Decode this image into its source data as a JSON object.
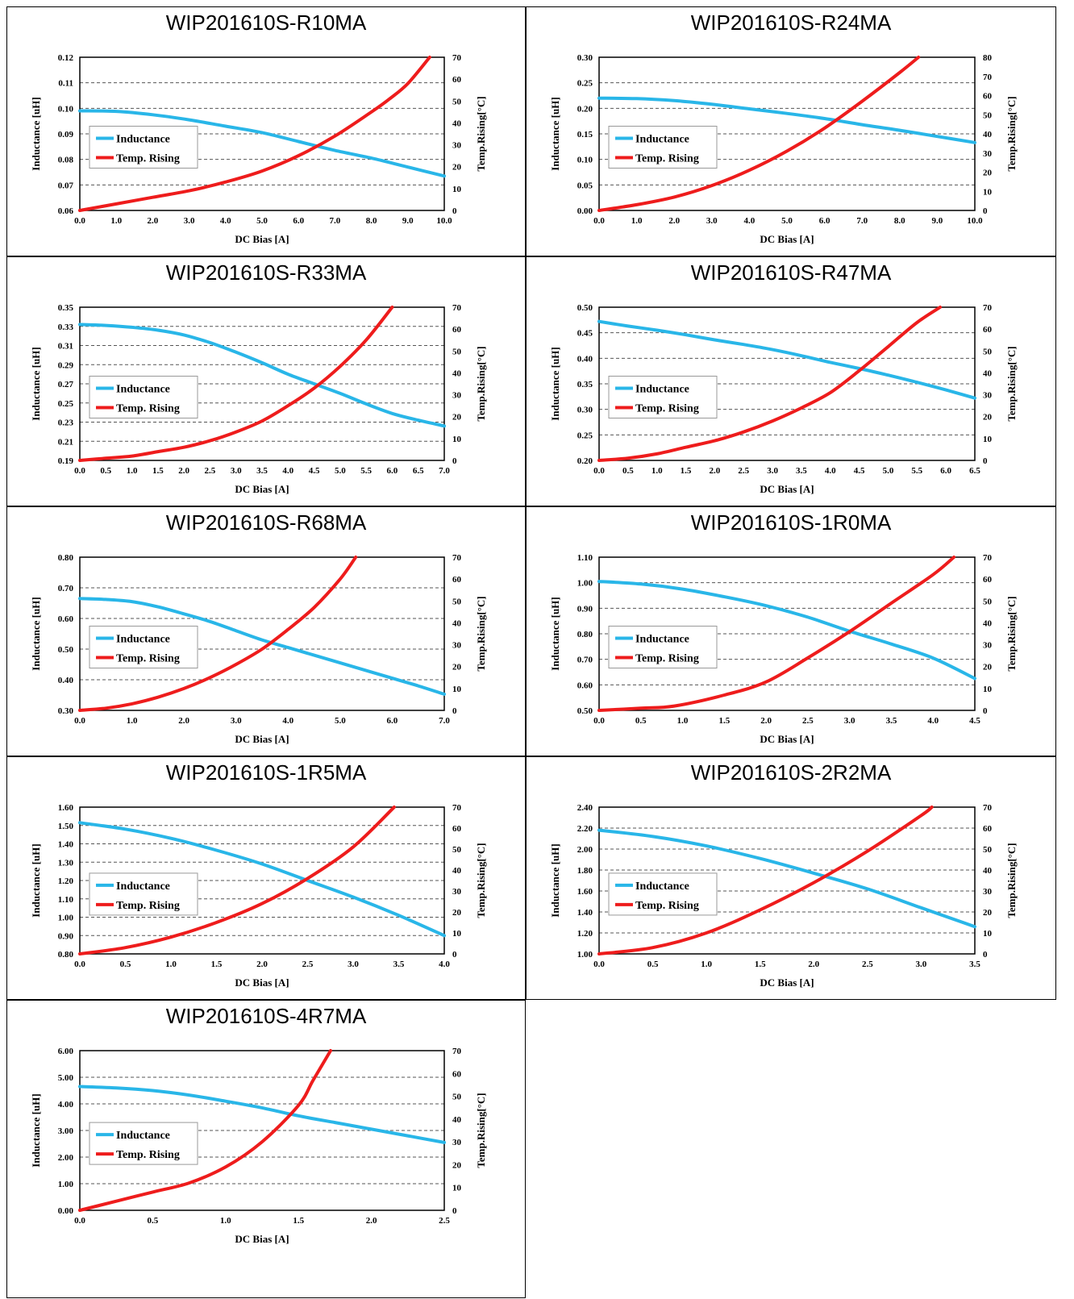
{
  "colors": {
    "inductance": "#29b6e8",
    "temp_rising": "#ee1c1c",
    "grid": "#555555"
  },
  "chart_data": [
    {
      "type": "line",
      "title": "WIP201610S-R10MA",
      "xlabel": "DC Bias [A]",
      "ylabel": "Inductance [uH]",
      "y2label": "Temp.Rising[°C]",
      "xlim": [
        0,
        10
      ],
      "ylim": [
        0.06,
        0.12
      ],
      "y2lim": [
        0,
        70
      ],
      "xticks": [
        "0.0",
        "1.0",
        "2.0",
        "3.0",
        "4.0",
        "5.0",
        "6.0",
        "7.0",
        "8.0",
        "9.0",
        "10.0"
      ],
      "yticks": [
        "0.06",
        "0.07",
        "0.08",
        "0.09",
        "0.10",
        "0.11",
        "0.12"
      ],
      "y2ticks": [
        "0",
        "10",
        "20",
        "30",
        "40",
        "50",
        "60",
        "70"
      ],
      "grid": true,
      "legend_position": "left-middle",
      "series": [
        {
          "name": "Inductance",
          "axis": "left",
          "x": [
            0,
            1,
            2,
            3,
            4,
            5,
            6,
            7,
            8,
            9,
            10
          ],
          "y": [
            0.099,
            0.0988,
            0.0975,
            0.0955,
            0.093,
            0.0905,
            0.087,
            0.0835,
            0.0805,
            0.077,
            0.0735
          ]
        },
        {
          "name": "Temp. Rising",
          "axis": "right",
          "x": [
            0,
            1,
            2,
            3,
            4,
            5,
            6,
            7,
            8,
            8.5,
            9,
            9.6
          ],
          "y": [
            0,
            3,
            6,
            9,
            13,
            18,
            25,
            34,
            45,
            51,
            58,
            70
          ]
        }
      ]
    },
    {
      "type": "line",
      "title": "WIP201610S-R24MA",
      "xlabel": "DC Bias [A]",
      "ylabel": "Inductance [uH]",
      "y2label": "Temp.Rising[°C]",
      "xlim": [
        0,
        10
      ],
      "ylim": [
        0,
        0.3
      ],
      "y2lim": [
        0,
        80
      ],
      "xticks": [
        "0.0",
        "1.0",
        "2.0",
        "3.0",
        "4.0",
        "5.0",
        "6.0",
        "7.0",
        "8.0",
        "9.0",
        "10.0"
      ],
      "yticks": [
        "0.00",
        "0.05",
        "0.10",
        "0.15",
        "0.20",
        "0.25",
        "0.30"
      ],
      "y2ticks": [
        "0",
        "10",
        "20",
        "30",
        "40",
        "50",
        "60",
        "70",
        "80"
      ],
      "grid": true,
      "legend_position": "left-middle",
      "series": [
        {
          "name": "Inductance",
          "axis": "left",
          "x": [
            0,
            1,
            2,
            3,
            4,
            5,
            6,
            7,
            8,
            9,
            10
          ],
          "y": [
            0.22,
            0.219,
            0.215,
            0.208,
            0.199,
            0.19,
            0.18,
            0.168,
            0.157,
            0.145,
            0.133
          ]
        },
        {
          "name": "Temp. Rising",
          "axis": "right",
          "x": [
            0,
            1,
            2,
            3,
            4,
            5,
            6,
            7,
            8,
            8.5
          ],
          "y": [
            0,
            3,
            7,
            13,
            21,
            31,
            43,
            57,
            72,
            80
          ]
        }
      ]
    },
    {
      "type": "line",
      "title": "WIP201610S-R33MA",
      "xlabel": "DC Bias [A]",
      "ylabel": "Inductance [uH]",
      "y2label": "Temp.Rising[°C]",
      "xlim": [
        0,
        7
      ],
      "ylim": [
        0.19,
        0.35
      ],
      "y2lim": [
        0,
        70
      ],
      "xticks": [
        "0.0",
        "0.5",
        "1.0",
        "1.5",
        "2.0",
        "2.5",
        "3.0",
        "3.5",
        "4.0",
        "4.5",
        "5.0",
        "5.5",
        "6.0",
        "6.5",
        "7.0"
      ],
      "yticks": [
        "0.19",
        "0.21",
        "0.23",
        "0.25",
        "0.27",
        "0.29",
        "0.31",
        "0.33",
        "0.35"
      ],
      "y2ticks": [
        "0",
        "10",
        "20",
        "30",
        "40",
        "50",
        "60",
        "70"
      ],
      "grid": true,
      "legend_position": "left-middle",
      "series": [
        {
          "name": "Inductance",
          "axis": "left",
          "x": [
            0,
            0.5,
            1,
            1.5,
            2,
            2.5,
            3,
            3.5,
            4,
            4.5,
            5,
            5.5,
            6,
            6.5,
            7
          ],
          "y": [
            0.332,
            0.331,
            0.329,
            0.326,
            0.321,
            0.313,
            0.303,
            0.292,
            0.28,
            0.27,
            0.26,
            0.249,
            0.239,
            0.232,
            0.226
          ]
        },
        {
          "name": "Temp. Rising",
          "axis": "right",
          "x": [
            0,
            0.5,
            1,
            1.5,
            2,
            2.5,
            3,
            3.5,
            4,
            4.5,
            5,
            5.5,
            6
          ],
          "y": [
            0,
            1,
            2,
            4,
            6,
            9,
            13,
            18,
            25,
            33,
            43,
            55,
            70
          ]
        }
      ]
    },
    {
      "type": "line",
      "title": "WIP201610S-R47MA",
      "xlabel": "DC Bias [A]",
      "ylabel": "Inductance [uH]",
      "y2label": "Temp.Rising[°C]",
      "xlim": [
        0,
        6.5
      ],
      "ylim": [
        0.2,
        0.5
      ],
      "y2lim": [
        0,
        70
      ],
      "xticks": [
        "0.0",
        "0.5",
        "1.0",
        "1.5",
        "2.0",
        "2.5",
        "3.0",
        "3.5",
        "4.0",
        "4.5",
        "5.0",
        "5.5",
        "6.0",
        "6.5"
      ],
      "yticks": [
        "0.20",
        "0.25",
        "0.30",
        "0.35",
        "0.40",
        "0.45",
        "0.50"
      ],
      "y2ticks": [
        "0",
        "10",
        "20",
        "30",
        "40",
        "50",
        "60",
        "70"
      ],
      "grid": true,
      "legend_position": "left-middle",
      "series": [
        {
          "name": "Inductance",
          "axis": "left",
          "x": [
            0,
            0.5,
            1,
            1.5,
            2,
            2.5,
            3,
            3.5,
            4,
            4.5,
            5,
            5.5,
            6,
            6.5
          ],
          "y": [
            0.472,
            0.463,
            0.455,
            0.446,
            0.436,
            0.427,
            0.417,
            0.405,
            0.392,
            0.38,
            0.367,
            0.353,
            0.338,
            0.322
          ]
        },
        {
          "name": "Temp. Rising",
          "axis": "right",
          "x": [
            0,
            0.5,
            1,
            1.5,
            2,
            2.5,
            3,
            3.5,
            4,
            4.5,
            5,
            5.5,
            5.9
          ],
          "y": [
            0,
            1,
            3,
            6,
            9,
            13,
            18,
            24,
            31,
            41,
            52,
            63,
            70
          ]
        }
      ]
    },
    {
      "type": "line",
      "title": "WIP201610S-R68MA",
      "xlabel": "DC Bias [A]",
      "ylabel": "Inductance [uH]",
      "y2label": "Temp.Rising[°C]",
      "xlim": [
        0,
        7
      ],
      "ylim": [
        0.3,
        0.8
      ],
      "y2lim": [
        0,
        70
      ],
      "xticks": [
        "0.0",
        "1.0",
        "2.0",
        "3.0",
        "4.0",
        "5.0",
        "6.0",
        "7.0"
      ],
      "yticks": [
        "0.30",
        "0.40",
        "0.50",
        "0.60",
        "0.70",
        "0.80"
      ],
      "y2ticks": [
        "0",
        "10",
        "20",
        "30",
        "40",
        "50",
        "60",
        "70"
      ],
      "grid": true,
      "legend_position": "left-middle",
      "series": [
        {
          "name": "Inductance",
          "axis": "left",
          "x": [
            0,
            0.5,
            1,
            1.5,
            2,
            2.5,
            3,
            3.5,
            4,
            4.5,
            5,
            5.5,
            6,
            6.5,
            7
          ],
          "y": [
            0.665,
            0.662,
            0.655,
            0.638,
            0.615,
            0.59,
            0.56,
            0.53,
            0.505,
            0.48,
            0.455,
            0.43,
            0.405,
            0.38,
            0.353
          ]
        },
        {
          "name": "Temp. Rising",
          "axis": "right",
          "x": [
            0,
            0.5,
            1,
            1.5,
            2,
            2.5,
            3,
            3.5,
            4,
            4.5,
            5,
            5.3
          ],
          "y": [
            0,
            1,
            3,
            6,
            10,
            15,
            21,
            28,
            37,
            47,
            60,
            70
          ]
        }
      ]
    },
    {
      "type": "line",
      "title": "WIP201610S-1R0MA",
      "xlabel": "DC Bias [A]",
      "ylabel": "Inductance [uH]",
      "y2label": "Temp.Rising[°C]",
      "xlim": [
        0,
        4.5
      ],
      "ylim": [
        0.5,
        1.1
      ],
      "y2lim": [
        0,
        70
      ],
      "xticks": [
        "0.0",
        "0.5",
        "1.0",
        "1.5",
        "2.0",
        "2.5",
        "3.0",
        "3.5",
        "4.0",
        "4.5"
      ],
      "yticks": [
        "0.50",
        "0.60",
        "0.70",
        "0.80",
        "0.90",
        "1.00",
        "1.10"
      ],
      "y2ticks": [
        "0",
        "10",
        "20",
        "30",
        "40",
        "50",
        "60",
        "70"
      ],
      "grid": true,
      "legend_position": "left-middle",
      "series": [
        {
          "name": "Inductance",
          "axis": "left",
          "x": [
            0,
            0.5,
            1,
            1.5,
            2,
            2.5,
            3,
            3.5,
            4,
            4.5
          ],
          "y": [
            1.005,
            0.995,
            0.975,
            0.945,
            0.91,
            0.865,
            0.81,
            0.76,
            0.705,
            0.625
          ]
        },
        {
          "name": "Temp. Rising",
          "axis": "right",
          "x": [
            0,
            0.5,
            0.9,
            1.5,
            2,
            2.5,
            3,
            3.5,
            4,
            4.25
          ],
          "y": [
            0,
            1,
            2,
            7,
            13,
            24,
            36,
            49,
            62,
            70
          ]
        }
      ]
    },
    {
      "type": "line",
      "title": "WIP201610S-1R5MA",
      "xlabel": "DC Bias [A]",
      "ylabel": "Inductance [uH]",
      "y2label": "Temp.Rising[°C]",
      "xlim": [
        0,
        4
      ],
      "ylim": [
        0.8,
        1.6
      ],
      "y2lim": [
        0,
        70
      ],
      "xticks": [
        "0.0",
        "0.5",
        "1.0",
        "1.5",
        "2.0",
        "2.5",
        "3.0",
        "3.5",
        "4.0"
      ],
      "yticks": [
        "0.80",
        "0.90",
        "1.00",
        "1.10",
        "1.20",
        "1.30",
        "1.40",
        "1.50",
        "1.60"
      ],
      "y2ticks": [
        "0",
        "10",
        "20",
        "30",
        "40",
        "50",
        "60",
        "70"
      ],
      "grid": true,
      "legend_position": "left-middle",
      "series": [
        {
          "name": "Inductance",
          "axis": "left",
          "x": [
            0,
            0.5,
            1,
            1.5,
            2,
            2.5,
            3,
            3.5,
            4
          ],
          "y": [
            1.515,
            1.48,
            1.43,
            1.365,
            1.29,
            1.2,
            1.11,
            1.01,
            0.9
          ]
        },
        {
          "name": "Temp. Rising",
          "axis": "right",
          "x": [
            0,
            0.5,
            1,
            1.5,
            2,
            2.5,
            3,
            3.45
          ],
          "y": [
            0,
            3,
            8,
            15,
            24,
            36,
            51,
            70
          ]
        }
      ]
    },
    {
      "type": "line",
      "title": "WIP201610S-2R2MA",
      "xlabel": "DC Bias [A]",
      "ylabel": "Inductance [uH]",
      "y2label": "Temp.Rising[°C]",
      "xlim": [
        0,
        3.5
      ],
      "ylim": [
        1.0,
        2.4
      ],
      "y2lim": [
        0,
        70
      ],
      "xticks": [
        "0.0",
        "0.5",
        "1.0",
        "1.5",
        "2.0",
        "2.5",
        "3.0",
        "3.5"
      ],
      "yticks": [
        "1.00",
        "1.20",
        "1.40",
        "1.60",
        "1.80",
        "2.00",
        "2.20",
        "2.40"
      ],
      "y2ticks": [
        "0",
        "10",
        "20",
        "30",
        "40",
        "50",
        "60",
        "70"
      ],
      "grid": true,
      "legend_position": "left-middle",
      "series": [
        {
          "name": "Inductance",
          "axis": "left",
          "x": [
            0,
            0.5,
            1,
            1.5,
            2,
            2.5,
            3,
            3.5
          ],
          "y": [
            2.18,
            2.12,
            2.03,
            1.91,
            1.77,
            1.62,
            1.44,
            1.26
          ]
        },
        {
          "name": "Temp. Rising",
          "axis": "right",
          "x": [
            0,
            0.5,
            1,
            1.5,
            2,
            2.5,
            3,
            3.1
          ],
          "y": [
            0,
            3,
            10,
            21,
            34,
            49,
            66,
            70
          ]
        }
      ]
    },
    {
      "type": "line",
      "title": "WIP201610S-4R7MA",
      "xlabel": "DC Bias [A]",
      "ylabel": "Inductance [uH]",
      "y2label": "Temp.Rising[°C]",
      "xlim": [
        0,
        2.5
      ],
      "ylim": [
        0,
        6
      ],
      "y2lim": [
        0,
        70
      ],
      "xticks": [
        "0.0",
        "0.5",
        "1.0",
        "1.5",
        "2.0",
        "2.5"
      ],
      "yticks": [
        "0.00",
        "1.00",
        "2.00",
        "3.00",
        "4.00",
        "5.00",
        "6.00"
      ],
      "y2ticks": [
        "0",
        "10",
        "20",
        "30",
        "40",
        "50",
        "60",
        "70"
      ],
      "grid": true,
      "legend_position": "left-middle",
      "series": [
        {
          "name": "Inductance",
          "axis": "left",
          "x": [
            0,
            0.25,
            0.5,
            0.75,
            1,
            1.25,
            1.5,
            1.75,
            2,
            2.25,
            2.5
          ],
          "y": [
            4.65,
            4.6,
            4.5,
            4.33,
            4.1,
            3.85,
            3.55,
            3.3,
            3.05,
            2.8,
            2.55
          ]
        },
        {
          "name": "Temp. Rising",
          "axis": "right",
          "x": [
            0,
            0.25,
            0.5,
            0.75,
            1,
            1.25,
            1.5,
            1.6,
            1.72
          ],
          "y": [
            0,
            4,
            8,
            12,
            19,
            30,
            46,
            57,
            70
          ]
        }
      ]
    }
  ]
}
